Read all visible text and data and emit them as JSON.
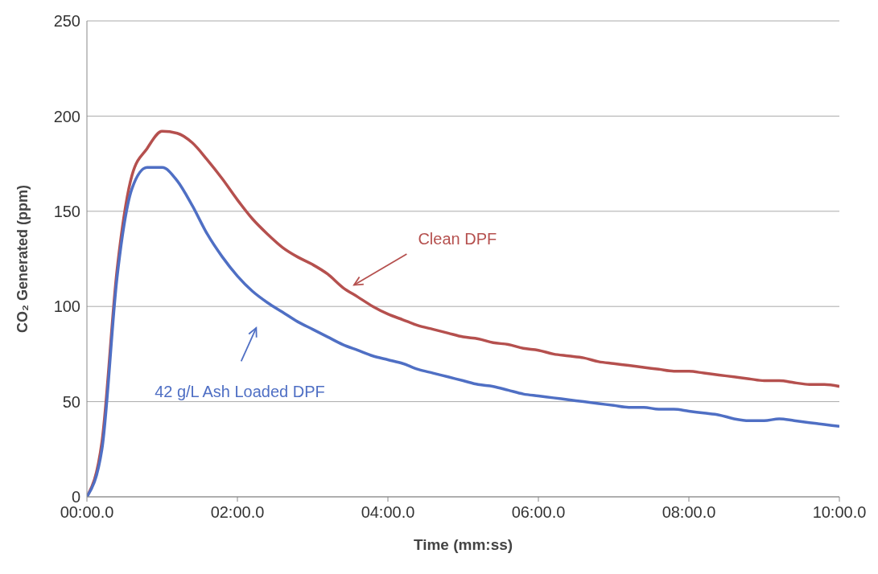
{
  "chart_data": {
    "type": "line",
    "xlabel": "Time (mm:ss)",
    "ylabel": "CO₂ Generated (ppm)",
    "categories": [
      "00:00.0",
      null,
      null,
      null,
      null,
      null,
      null,
      null,
      null,
      null,
      "02:00.0",
      null,
      null,
      null,
      null,
      null,
      null,
      null,
      null,
      null,
      "04:00.0",
      null,
      null,
      null,
      null,
      null,
      null,
      null,
      null,
      null,
      "06:00.0",
      null,
      null,
      null,
      null,
      null,
      null,
      null,
      null,
      null,
      "08:00.0",
      null,
      null,
      null,
      null,
      null,
      null,
      null,
      null,
      null,
      "10:00.0"
    ],
    "ylim": [
      0,
      250
    ],
    "yticks": [
      0,
      50,
      100,
      150,
      200,
      250
    ],
    "grid": "y",
    "marker": "none",
    "line_style": "solid",
    "series": [
      {
        "color": "#b5504e",
        "values": [
          0,
          29,
          119,
          169,
          183,
          192,
          191,
          186,
          177,
          167,
          156,
          146,
          138,
          131,
          126,
          122,
          117,
          110,
          105,
          100,
          96,
          93,
          90,
          88,
          86,
          84,
          83,
          81,
          80,
          78,
          77,
          75,
          74,
          73,
          71,
          70,
          69,
          68,
          67,
          66,
          66,
          65,
          64,
          63,
          62,
          61,
          61,
          60,
          59,
          59,
          58
        ]
      },
      {
        "color": "#4f6fc4",
        "values": [
          0,
          25,
          115,
          162,
          173,
          173,
          166,
          153,
          138,
          126,
          116,
          108,
          102,
          97,
          92,
          88,
          84,
          80,
          77,
          74,
          72,
          70,
          67,
          65,
          63,
          61,
          59,
          58,
          56,
          54,
          53,
          52,
          51,
          50,
          49,
          48,
          47,
          47,
          46,
          46,
          45,
          44,
          43,
          41,
          40,
          40,
          41,
          40,
          39,
          38,
          37
        ]
      }
    ],
    "annotations": [
      "Clean DPF",
      "42 g/L Ash Loaded DPF"
    ]
  }
}
